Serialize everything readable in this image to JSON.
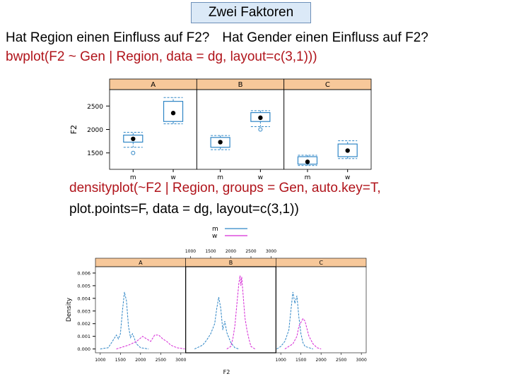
{
  "slide": {
    "title": "Zwei Faktoren",
    "question_region": "Hat Region einen Einfluss auf F2?",
    "question_gender": "Hat Gender einen Einfluss auf F2?",
    "code_bwplot": "bwplot(F2 ~ Gen | Region, data = dg, layout=c(3,1)))",
    "code_density_1": "densityplot(~F2 | Region, groups = Gen, auto.key=T,",
    "code_density_2": "plot.points=F, data = dg, layout=c(3,1))"
  },
  "colors": {
    "panel_strip": "#f7c89a",
    "box": "#2f86c6",
    "m_curve": "#2f86c6",
    "w_curve": "#d62ad6",
    "code": "#b0141b"
  },
  "chart_data": [
    {
      "type": "box",
      "panels": [
        "A",
        "B",
        "C"
      ],
      "categories": [
        "m",
        "w"
      ],
      "ylabel": "F2",
      "yticks": [
        1500,
        2000,
        2500
      ],
      "ylim": [
        1150,
        2850
      ],
      "boxes": {
        "A": {
          "m": {
            "median": 1800,
            "q1": 1730,
            "q3": 1880,
            "lo": 1620,
            "hi": 1940,
            "out": [
              1500
            ]
          },
          "w": {
            "median": 2350,
            "q1": 2170,
            "q3": 2600,
            "lo": 2120,
            "hi": 2680,
            "out": []
          }
        },
        "B": {
          "m": {
            "median": 1730,
            "q1": 1620,
            "q3": 1830,
            "lo": 1570,
            "hi": 1870,
            "out": []
          },
          "w": {
            "median": 2250,
            "q1": 2170,
            "q3": 2360,
            "lo": 2060,
            "hi": 2400,
            "out": [
              2000
            ]
          }
        },
        "C": {
          "m": {
            "median": 1310,
            "q1": 1260,
            "q3": 1420,
            "lo": 1230,
            "hi": 1450,
            "out": []
          },
          "w": {
            "median": 1550,
            "q1": 1420,
            "q3": 1690,
            "lo": 1380,
            "hi": 1760,
            "out": []
          }
        }
      }
    },
    {
      "type": "line",
      "panels": [
        "A",
        "B",
        "C"
      ],
      "xlabel": "F2",
      "ylabel": "Density",
      "xticks": [
        1000,
        1500,
        2000,
        2500,
        3000
      ],
      "yticks": [
        0.0,
        0.001,
        0.002,
        0.003,
        0.004,
        0.005,
        0.006
      ],
      "ytick_labels": [
        "0.000",
        "0.001",
        "0.002",
        "0.003",
        "0.004",
        "0.005",
        "0.006"
      ],
      "xlim": [
        880,
        3120
      ],
      "ylim": [
        -0.0003,
        0.0065
      ],
      "legend": {
        "position": "top",
        "entries": [
          "m",
          "w"
        ]
      },
      "series": [
        {
          "panel": "A",
          "name": "m",
          "x": [
            1000,
            1200,
            1300,
            1400,
            1450,
            1500,
            1550,
            1600,
            1650,
            1700,
            1750,
            1800,
            1900,
            2000,
            2200
          ],
          "y": [
            0,
            0.0001,
            0.0006,
            0.0011,
            0.0008,
            0.0012,
            0.003,
            0.0045,
            0.0038,
            0.0018,
            0.0009,
            0.0012,
            0.0004,
            0.0001,
            0
          ]
        },
        {
          "panel": "A",
          "name": "w",
          "x": [
            1400,
            1700,
            1900,
            2050,
            2150,
            2250,
            2350,
            2450,
            2550,
            2650,
            2750,
            2900,
            3100
          ],
          "y": [
            0,
            0.0003,
            0.0006,
            0.001,
            0.0008,
            0.0006,
            0.0011,
            0.0011,
            0.0008,
            0.0006,
            0.0003,
            0.0001,
            0
          ]
        },
        {
          "panel": "B",
          "name": "m",
          "x": [
            1100,
            1300,
            1400,
            1500,
            1600,
            1650,
            1700,
            1750,
            1800,
            1850,
            1900,
            2000,
            2100,
            2200
          ],
          "y": [
            0,
            0.0003,
            0.0007,
            0.0012,
            0.002,
            0.0032,
            0.0041,
            0.0032,
            0.0015,
            0.0022,
            0.0013,
            0.0005,
            0.0001,
            0
          ]
        },
        {
          "panel": "B",
          "name": "w",
          "x": [
            1900,
            2000,
            2050,
            2100,
            2150,
            2200,
            2230,
            2250,
            2270,
            2300,
            2350,
            2400,
            2450,
            2500,
            2600
          ],
          "y": [
            0,
            0.0002,
            0.0008,
            0.0018,
            0.0035,
            0.0052,
            0.0058,
            0.005,
            0.0057,
            0.0045,
            0.0025,
            0.0015,
            0.0008,
            0.0002,
            0
          ]
        },
        {
          "panel": "C",
          "name": "m",
          "x": [
            900,
            1000,
            1100,
            1200,
            1250,
            1300,
            1350,
            1400,
            1450,
            1500,
            1550,
            1600,
            1700,
            1800
          ],
          "y": [
            0,
            0.0002,
            0.0006,
            0.0015,
            0.003,
            0.0045,
            0.0036,
            0.0042,
            0.0025,
            0.0012,
            0.0005,
            0.0002,
            0.0001,
            0
          ]
        },
        {
          "panel": "C",
          "name": "w",
          "x": [
            1100,
            1300,
            1400,
            1450,
            1500,
            1550,
            1600,
            1650,
            1700,
            1800,
            1900,
            2000
          ],
          "y": [
            0,
            0.0004,
            0.001,
            0.0018,
            0.0021,
            0.0024,
            0.0022,
            0.0016,
            0.001,
            0.0004,
            0.0001,
            0
          ]
        }
      ]
    }
  ]
}
